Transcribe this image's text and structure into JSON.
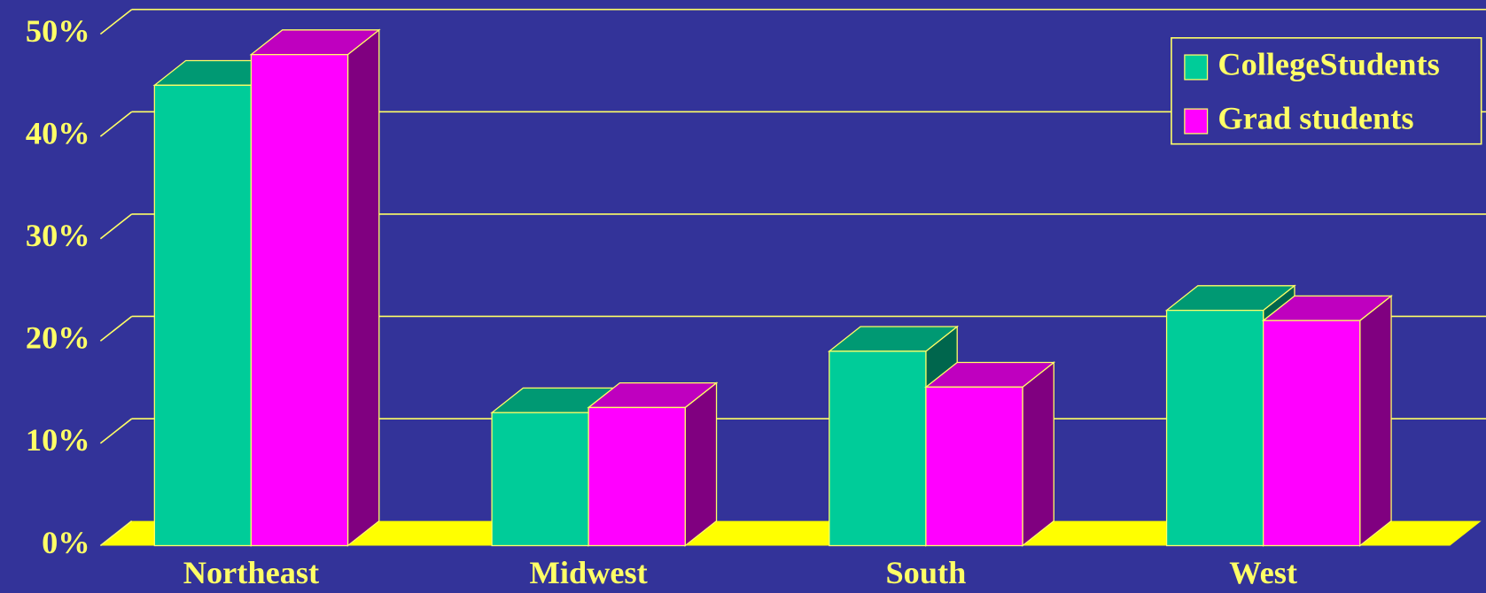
{
  "chart_data": {
    "type": "bar3d",
    "categories": [
      "Northeast",
      "Midwest",
      "South",
      "West"
    ],
    "series": [
      {
        "name": "CollegeStudents",
        "color": "#00cc99",
        "values": [
          45,
          13,
          19,
          23
        ]
      },
      {
        "name": "Grad students",
        "color": "#ff00ff",
        "values": [
          48,
          13.5,
          15.5,
          22
        ]
      }
    ],
    "ylim": [
      0,
      50
    ],
    "yticks": [
      {
        "value": 0,
        "label": "0%"
      },
      {
        "value": 10,
        "label": "10%"
      },
      {
        "value": 20,
        "label": "20%"
      },
      {
        "value": 30,
        "label": "30%"
      },
      {
        "value": 40,
        "label": "40%"
      },
      {
        "value": 50,
        "label": "50%"
      }
    ],
    "grid": true,
    "legend": "top-right"
  }
}
